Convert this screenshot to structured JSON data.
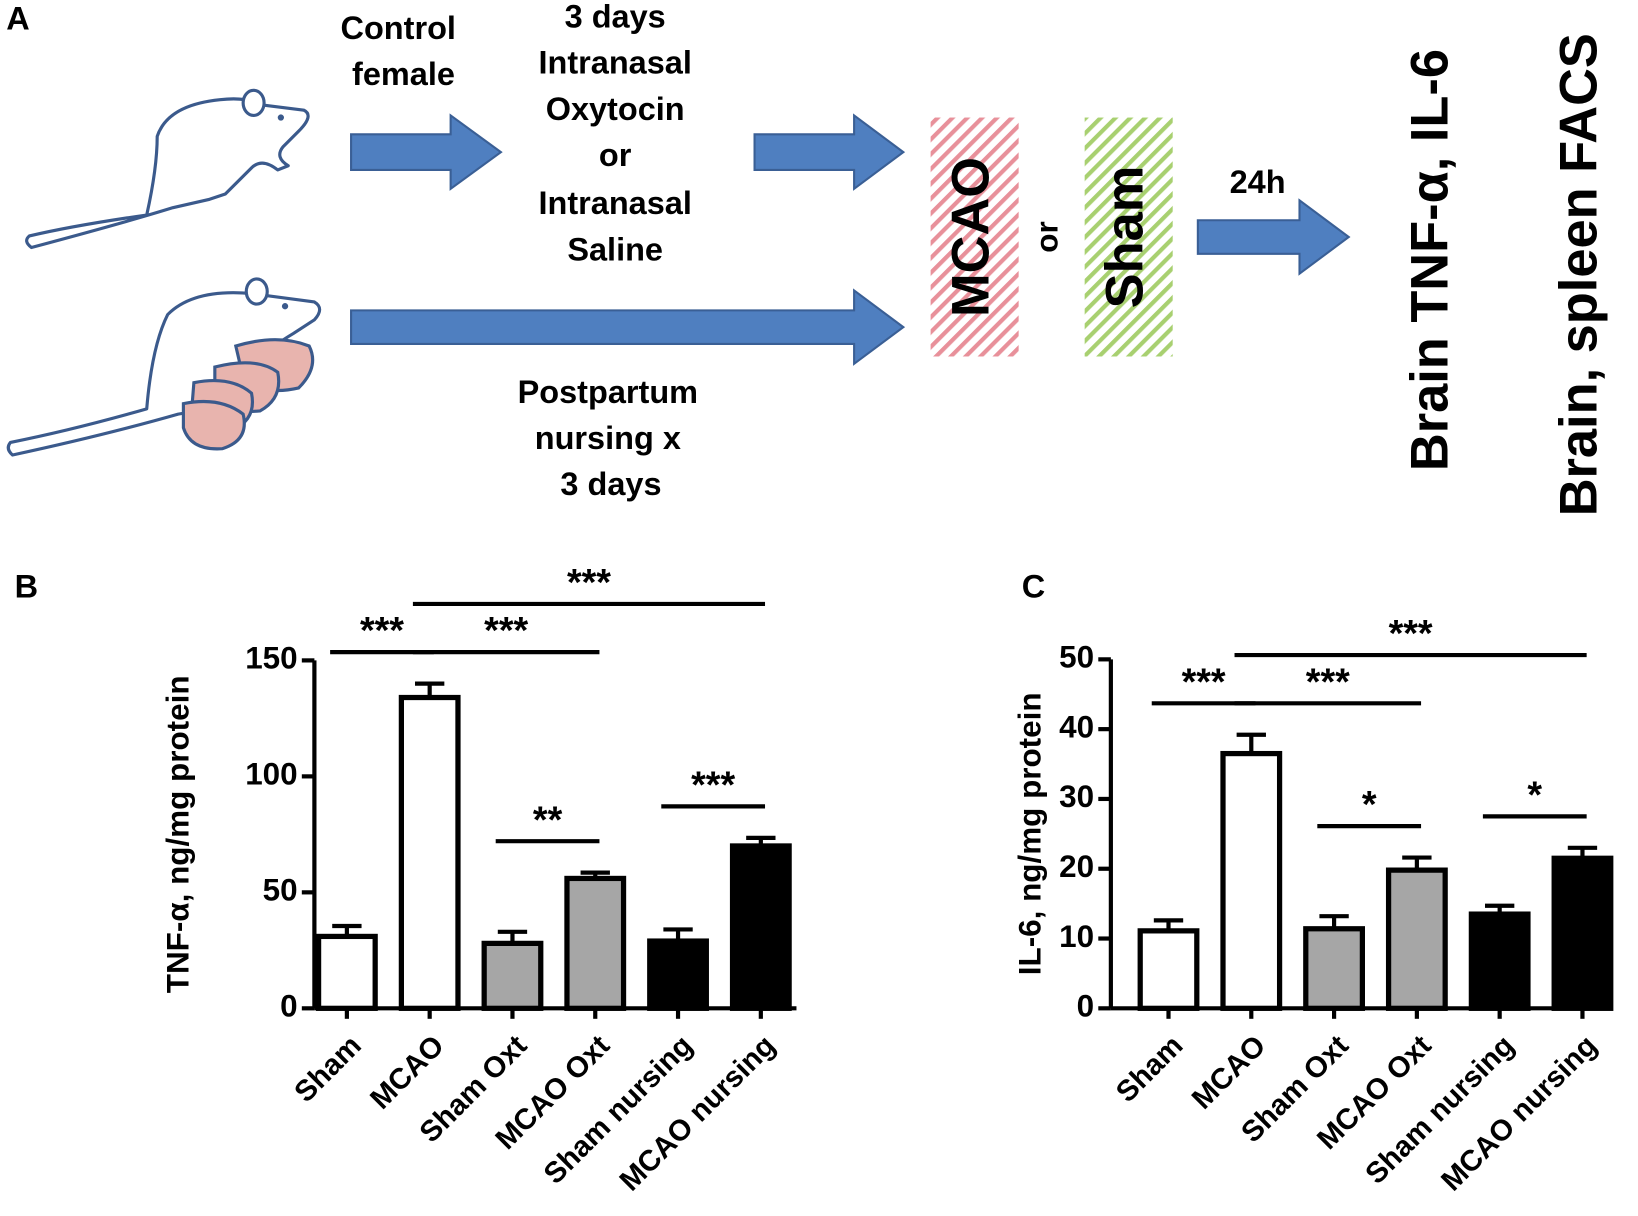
{
  "panel_a": {
    "label": "A",
    "control_female": [
      "Control",
      "female"
    ],
    "treatment": [
      "3 days",
      "Intranasal",
      "Oxytocin",
      "or",
      "Intranasal",
      "Saline"
    ],
    "postpartum": [
      "Postpartum",
      "nursing x",
      "3 days"
    ],
    "mcao": "MCAO",
    "or": "or",
    "sham": "Sham",
    "time": "24h",
    "outcome_1": "Brain TNF-α, IL-6",
    "outcome_2": "Brain, spleen FACS"
  },
  "chart_data": [
    {
      "type": "bar",
      "panel_label": "B",
      "y_label": "TNF-α, ng/mg protein",
      "categories": [
        "Sham",
        "MCAO",
        "Sham Oxt",
        "MCAO Oxt",
        "Sham nursing",
        "MCAO nursing"
      ],
      "values": [
        31,
        134,
        28,
        56,
        29,
        70
      ],
      "errors": [
        4.5,
        6,
        5,
        2.5,
        5,
        3.5
      ],
      "colors": [
        "#ffffff",
        "#ffffff",
        "#a6a6a6",
        "#a6a6a6",
        "#000000",
        "#000000"
      ],
      "ylim": [
        0,
        150
      ],
      "yticks": [
        0,
        50,
        100,
        150
      ],
      "significance": [
        {
          "between": [
            0,
            1
          ],
          "label": "***"
        },
        {
          "between": [
            1,
            3
          ],
          "label": "***"
        },
        {
          "between": [
            1,
            5
          ],
          "label": "***"
        },
        {
          "between": [
            2,
            3
          ],
          "label": "**"
        },
        {
          "between": [
            4,
            5
          ],
          "label": "***"
        }
      ]
    },
    {
      "type": "bar",
      "panel_label": "C",
      "y_label": "IL-6, ng/mg protein",
      "categories": [
        "Sham",
        "MCAO",
        "Sham Oxt",
        "MCAO Oxt",
        "Sham nursing",
        "MCAO nursing"
      ],
      "values": [
        11.1,
        36.5,
        11.4,
        19.8,
        13.5,
        21.5
      ],
      "errors": [
        1.5,
        2.7,
        1.8,
        1.8,
        1.2,
        1.5
      ],
      "colors": [
        "#ffffff",
        "#ffffff",
        "#a6a6a6",
        "#a6a6a6",
        "#000000",
        "#000000"
      ],
      "ylim": [
        0,
        50
      ],
      "yticks": [
        0,
        10,
        20,
        30,
        40,
        50
      ],
      "significance": [
        {
          "between": [
            0,
            1
          ],
          "label": "***"
        },
        {
          "between": [
            1,
            3
          ],
          "label": "***"
        },
        {
          "between": [
            1,
            5
          ],
          "label": "***"
        },
        {
          "between": [
            2,
            3
          ],
          "label": "*"
        },
        {
          "between": [
            4,
            5
          ],
          "label": "*"
        }
      ]
    }
  ]
}
